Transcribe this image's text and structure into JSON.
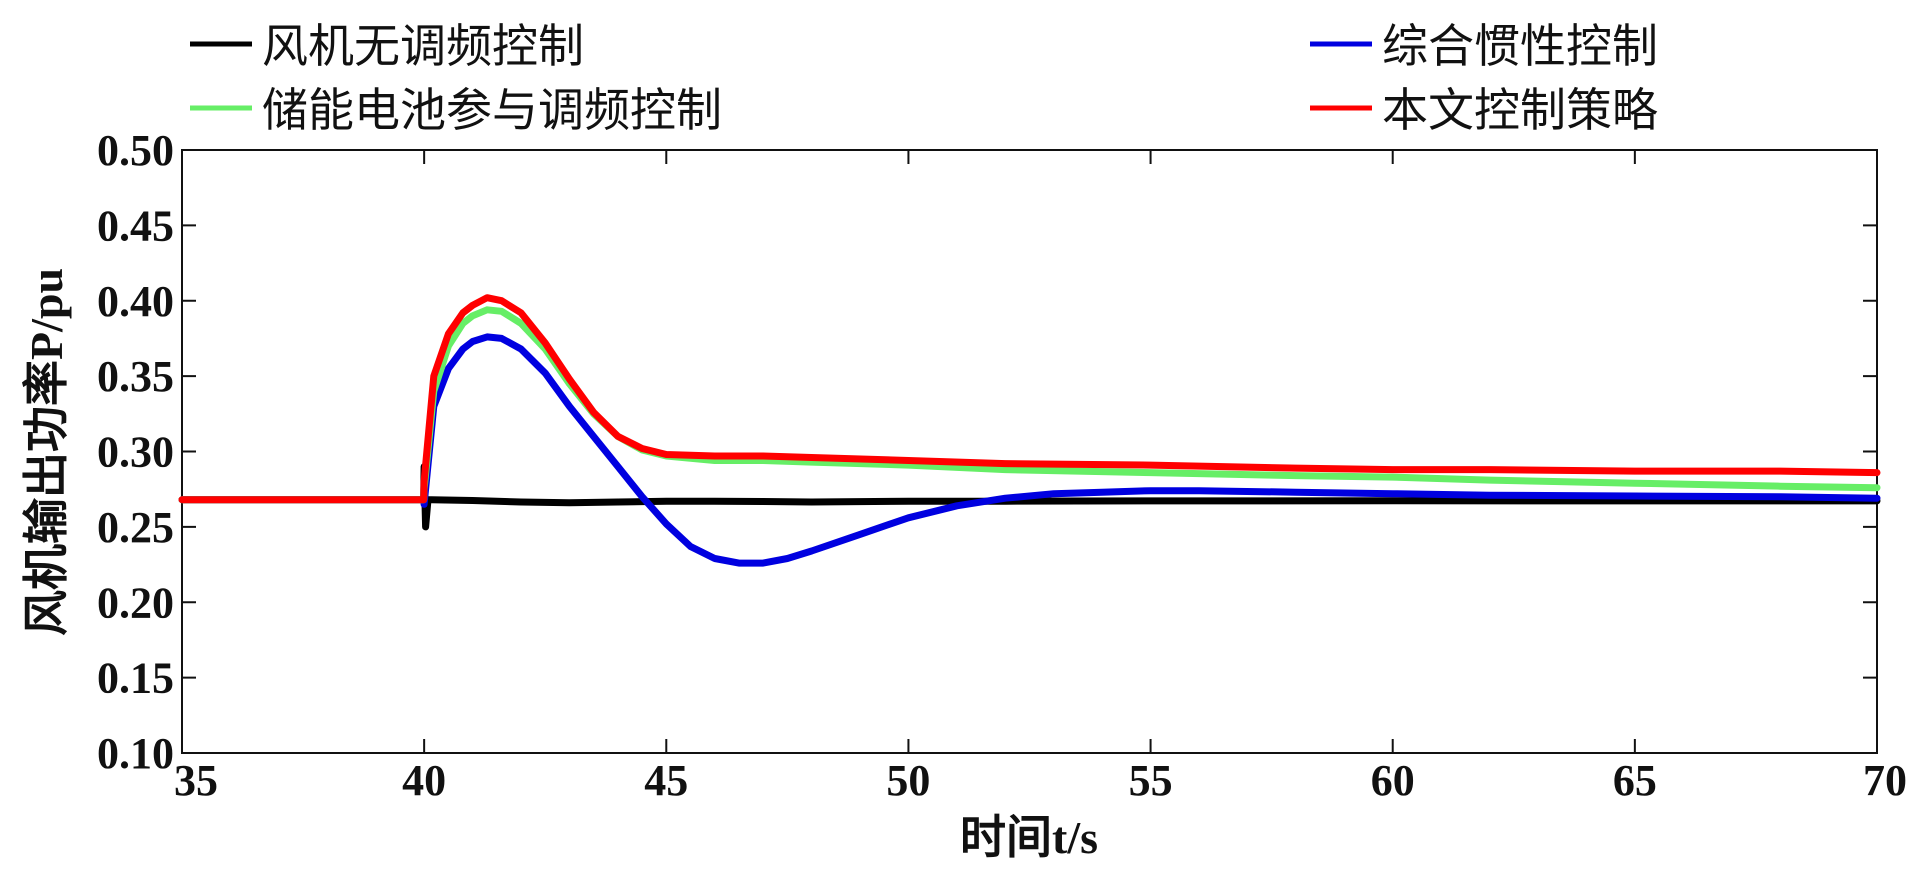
{
  "chart_data": {
    "type": "line",
    "title": "",
    "xlabel": "时间t/s",
    "ylabel": "风机输出功率P/pu",
    "xlim": [
      35,
      70
    ],
    "ylim": [
      0.1,
      0.5
    ],
    "xticks": [
      35,
      40,
      45,
      50,
      55,
      60,
      65,
      70
    ],
    "xtick_labels": [
      "35",
      "40",
      "45",
      "50",
      "55",
      "60",
      "65",
      "70"
    ],
    "yticks": [
      0.1,
      0.15,
      0.2,
      0.25,
      0.3,
      0.35,
      0.4,
      0.45,
      0.5
    ],
    "ytick_labels": [
      "0.10",
      "0.15",
      "0.20",
      "0.25",
      "0.30",
      "0.35",
      "0.40",
      "0.45",
      "0.50"
    ],
    "grid": false,
    "legend_position": "top (outside plot, two columns)",
    "series": [
      {
        "name": "风机无调频控制",
        "color": "#000000",
        "x": [
          35,
          39.99,
          40.0,
          40.03,
          40.08,
          40.15,
          41,
          42,
          43,
          44,
          45,
          46,
          47,
          48,
          50,
          52,
          55,
          60,
          65,
          70
        ],
        "y": [
          0.268,
          0.268,
          0.29,
          0.25,
          0.268,
          0.268,
          0.2675,
          0.2665,
          0.266,
          0.2665,
          0.267,
          0.267,
          0.2668,
          0.2665,
          0.267,
          0.267,
          0.2672,
          0.2673,
          0.2672,
          0.2672
        ]
      },
      {
        "name": "综合惯性控制",
        "color": "#0000e0",
        "x": [
          35,
          39.99,
          40.0,
          40.2,
          40.5,
          40.8,
          41.0,
          41.3,
          41.6,
          42.0,
          42.5,
          43,
          43.5,
          44,
          44.5,
          45,
          45.5,
          46,
          46.5,
          47,
          47.5,
          48,
          49,
          50,
          51,
          52,
          53,
          54,
          55,
          56,
          58,
          60,
          62,
          65,
          68,
          70
        ],
        "y": [
          0.268,
          0.268,
          0.265,
          0.33,
          0.355,
          0.368,
          0.373,
          0.376,
          0.375,
          0.368,
          0.352,
          0.33,
          0.31,
          0.29,
          0.27,
          0.252,
          0.237,
          0.229,
          0.226,
          0.226,
          0.229,
          0.234,
          0.245,
          0.256,
          0.264,
          0.269,
          0.272,
          0.273,
          0.274,
          0.274,
          0.273,
          0.272,
          0.271,
          0.2705,
          0.27,
          0.269
        ]
      },
      {
        "name": "储能电池参与调频控制",
        "color": "#66ee66",
        "x": [
          35,
          39.99,
          40.0,
          40.2,
          40.5,
          40.8,
          41.0,
          41.3,
          41.6,
          42.0,
          42.5,
          43,
          43.5,
          44,
          44.5,
          45,
          46,
          47,
          48,
          50,
          52,
          55,
          58,
          60,
          62,
          65,
          68,
          70
        ],
        "y": [
          0.268,
          0.268,
          0.275,
          0.34,
          0.37,
          0.385,
          0.39,
          0.394,
          0.393,
          0.385,
          0.368,
          0.345,
          0.325,
          0.31,
          0.301,
          0.297,
          0.294,
          0.294,
          0.293,
          0.291,
          0.288,
          0.286,
          0.284,
          0.283,
          0.281,
          0.279,
          0.277,
          0.276
        ]
      },
      {
        "name": "本文控制策略",
        "color": "#ff0000",
        "x": [
          35,
          39.99,
          40.0,
          40.2,
          40.5,
          40.8,
          41.0,
          41.3,
          41.6,
          42.0,
          42.5,
          43,
          43.5,
          44,
          44.5,
          45,
          46,
          47,
          48,
          50,
          52,
          55,
          58,
          60,
          62,
          65,
          68,
          70
        ],
        "y": [
          0.268,
          0.268,
          0.28,
          0.35,
          0.378,
          0.392,
          0.397,
          0.402,
          0.4,
          0.392,
          0.372,
          0.348,
          0.326,
          0.31,
          0.302,
          0.298,
          0.297,
          0.297,
          0.296,
          0.294,
          0.292,
          0.291,
          0.289,
          0.288,
          0.288,
          0.287,
          0.287,
          0.286
        ]
      }
    ]
  }
}
